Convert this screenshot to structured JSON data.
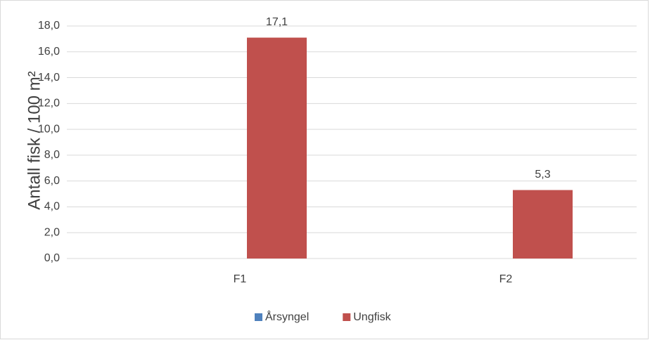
{
  "chart_data": {
    "type": "bar",
    "y_axis_label": "Antall fisk / 100 m²",
    "categories": [
      "F1",
      "F2"
    ],
    "series": [
      {
        "name": "Årsyngel",
        "color": "#4f81bd",
        "values": [
          0,
          0
        ]
      },
      {
        "name": "Ungfisk",
        "color": "#c0504d",
        "values": [
          17.1,
          5.3
        ],
        "value_labels": [
          "17,1",
          "5,3"
        ]
      }
    ],
    "ylim": [
      0,
      18
    ],
    "yticks": [
      {
        "value": 0,
        "label": "0,0"
      },
      {
        "value": 2,
        "label": "2,0"
      },
      {
        "value": 4,
        "label": "4,0"
      },
      {
        "value": 6,
        "label": "6,0"
      },
      {
        "value": 8,
        "label": "8,0"
      },
      {
        "value": 10,
        "label": "10,0"
      },
      {
        "value": 12,
        "label": "12,0"
      },
      {
        "value": 14,
        "label": "14,0"
      },
      {
        "value": 16,
        "label": "16,0"
      },
      {
        "value": 18,
        "label": "18,0"
      }
    ],
    "grid": true,
    "legend": "bottom"
  }
}
